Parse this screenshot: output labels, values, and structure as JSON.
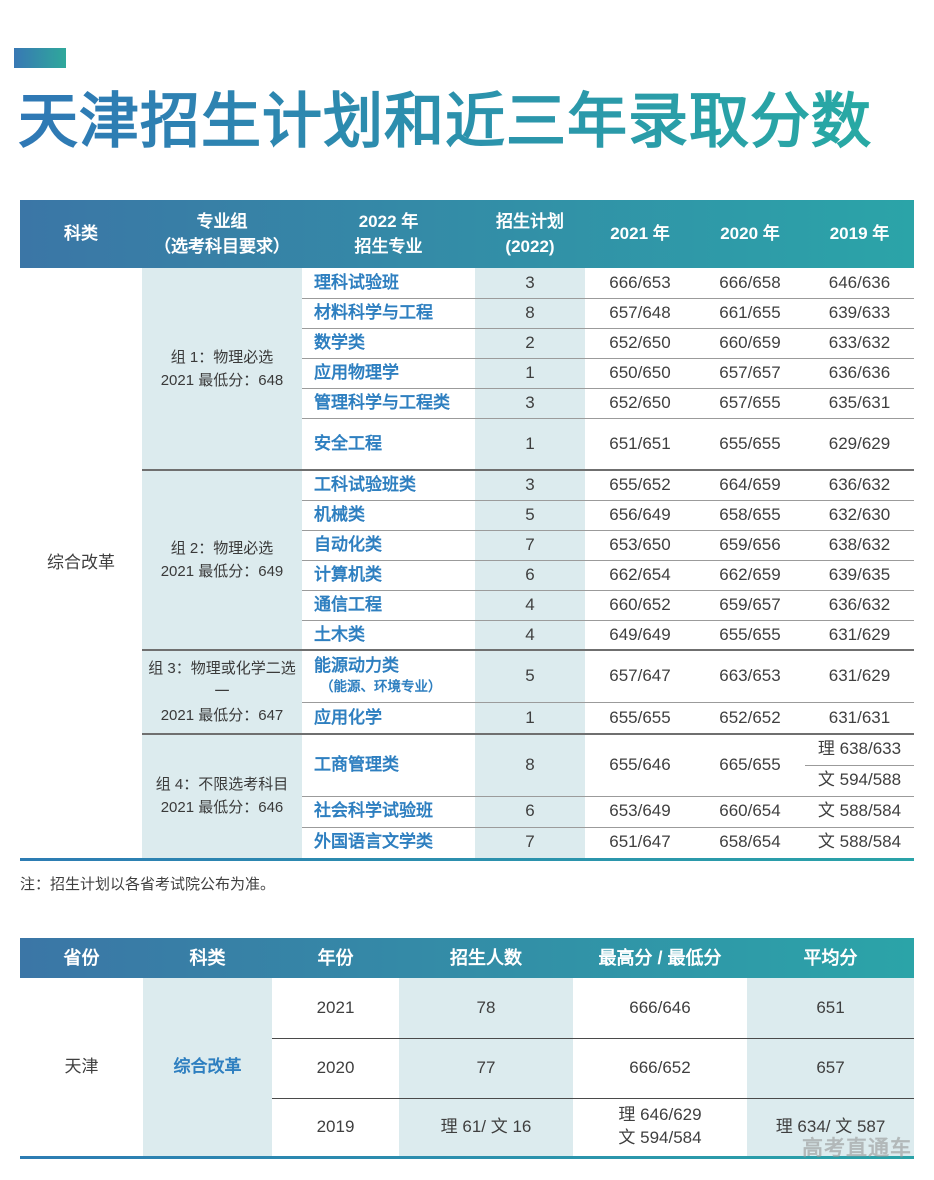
{
  "page": {
    "title": "天津招生计划和近三年录取分数",
    "note": "注：招生计划以各省考试院公布为准。",
    "watermark": "高考直通车"
  },
  "colors": {
    "header_gradient_left": "#3b76a6",
    "header_gradient_right": "#2ba4a8",
    "title_gradient_left": "#2f78b5",
    "title_gradient_right": "#28a9a4",
    "shaded_column": "#dcebee",
    "link_blue": "#2e7fc0"
  },
  "plan_table": {
    "headers": [
      [
        "科类"
      ],
      [
        "专业组",
        "（选考科目要求）"
      ],
      [
        "2022 年",
        "招生专业"
      ],
      [
        "招生计划",
        "(2022)"
      ],
      [
        "2021 年"
      ],
      [
        "2020 年"
      ],
      [
        "2019 年"
      ]
    ],
    "category": "综合改革",
    "groups": [
      {
        "label": [
          "组 1：物理必选",
          "2021 最低分：648"
        ],
        "rows": [
          {
            "major": "理科试验班",
            "plan": "3",
            "y2021": "666/653",
            "y2020": "666/658",
            "y2019": "646/636"
          },
          {
            "major": "材料科学与工程",
            "plan": "8",
            "y2021": "657/648",
            "y2020": "661/655",
            "y2019": "639/633"
          },
          {
            "major": "数学类",
            "plan": "2",
            "y2021": "652/650",
            "y2020": "660/659",
            "y2019": "633/632"
          },
          {
            "major": "应用物理学",
            "plan": "1",
            "y2021": "650/650",
            "y2020": "657/657",
            "y2019": "636/636"
          },
          {
            "major": "管理科学与工程类",
            "plan": "3",
            "y2021": "652/650",
            "y2020": "657/655",
            "y2019": "635/631"
          },
          {
            "major": "安全工程",
            "plan": "1",
            "y2021": "651/651",
            "y2020": "655/655",
            "y2019": "629/629"
          }
        ]
      },
      {
        "label": [
          "组 2：物理必选",
          "2021 最低分：649"
        ],
        "rows": [
          {
            "major": "工科试验班类",
            "plan": "3",
            "y2021": "655/652",
            "y2020": "664/659",
            "y2019": "636/632"
          },
          {
            "major": "机械类",
            "plan": "5",
            "y2021": "656/649",
            "y2020": "658/655",
            "y2019": "632/630"
          },
          {
            "major": "自动化类",
            "plan": "7",
            "y2021": "653/650",
            "y2020": "659/656",
            "y2019": "638/632"
          },
          {
            "major": "计算机类",
            "plan": "6",
            "y2021": "662/654",
            "y2020": "662/659",
            "y2019": "639/635"
          },
          {
            "major": "通信工程",
            "plan": "4",
            "y2021": "660/652",
            "y2020": "659/657",
            "y2019": "636/632"
          },
          {
            "major": "土木类",
            "plan": "4",
            "y2021": "649/649",
            "y2020": "655/655",
            "y2019": "631/629"
          }
        ]
      },
      {
        "label": [
          "组 3：物理或化学二选一",
          "2021 最低分：647"
        ],
        "rows": [
          {
            "major": "能源动力类",
            "major_sub": "（能源、环境专业）",
            "plan": "5",
            "y2021": "657/647",
            "y2020": "663/653",
            "y2019": "631/629"
          },
          {
            "major": "应用化学",
            "plan": "1",
            "y2021": "655/655",
            "y2020": "652/652",
            "y2019": "631/631"
          }
        ]
      },
      {
        "label": [
          "组 4：不限选考科目",
          "2021 最低分：646"
        ],
        "rows": [
          {
            "major": "工商管理类",
            "plan": "8",
            "y2021": "655/646",
            "y2020": "665/655",
            "y2019_split": [
              "理 638/633",
              "文 594/588"
            ]
          },
          {
            "major": "社会科学试验班",
            "plan": "6",
            "y2021": "653/649",
            "y2020": "660/654",
            "y2019": "文 588/584"
          },
          {
            "major": "外国语言文学类",
            "plan": "7",
            "y2021": "651/647",
            "y2020": "658/654",
            "y2019": "文 588/584"
          }
        ]
      }
    ]
  },
  "summary_table": {
    "headers": [
      "省份",
      "科类",
      "年份",
      "招生人数",
      "最高分 / 最低分",
      "平均分"
    ],
    "province": "天津",
    "category": "综合改革",
    "rows": [
      {
        "year": "2021",
        "count": "78",
        "hi_lo": [
          "666/646"
        ],
        "avg": "651"
      },
      {
        "year": "2020",
        "count": "77",
        "hi_lo": [
          "666/652"
        ],
        "avg": "657"
      },
      {
        "year": "2019",
        "count": "理 61/ 文 16",
        "hi_lo": [
          "理 646/629",
          "文 594/584"
        ],
        "avg": "理 634/ 文 587"
      }
    ]
  }
}
